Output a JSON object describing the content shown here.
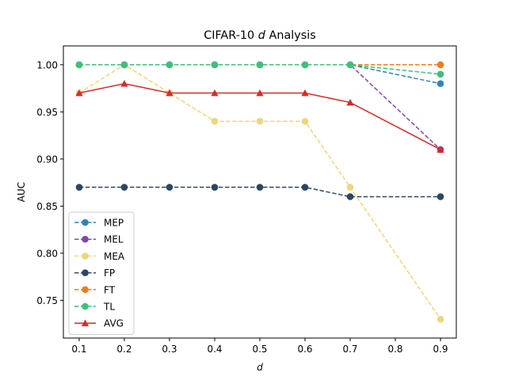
{
  "chart_data": {
    "type": "line",
    "title_prefix": "CIFAR-10 ",
    "title_italic": "d",
    "title_suffix": " Analysis",
    "xlabel": "d",
    "ylabel": "AUC",
    "xlim": [
      0.065,
      0.935
    ],
    "ylim": [
      0.71,
      1.02
    ],
    "xticks": [
      0.1,
      0.2,
      0.3,
      0.4,
      0.5,
      0.6,
      0.7,
      0.8,
      0.9
    ],
    "xtick_labels": [
      "0.1",
      "0.2",
      "0.3",
      "0.4",
      "0.5",
      "0.6",
      "0.7",
      "0.8",
      "0.9"
    ],
    "yticks": [
      0.75,
      0.8,
      0.85,
      0.9,
      0.95,
      1.0
    ],
    "ytick_labels": [
      "0.75",
      "0.80",
      "0.85",
      "0.90",
      "0.95",
      "1.00"
    ],
    "grid": false,
    "legend_position": "lower-left",
    "x": [
      0.1,
      0.2,
      0.3,
      0.4,
      0.5,
      0.6,
      0.7,
      0.9
    ],
    "series": [
      {
        "name": "MEP",
        "color": "#3282b8",
        "dashed": true,
        "marker": "circle",
        "values": [
          1.0,
          1.0,
          1.0,
          1.0,
          1.0,
          1.0,
          1.0,
          0.98
        ]
      },
      {
        "name": "MEL",
        "color": "#8147b0",
        "dashed": true,
        "marker": "circle",
        "values": [
          1.0,
          1.0,
          1.0,
          1.0,
          1.0,
          1.0,
          1.0,
          0.91
        ]
      },
      {
        "name": "MEA",
        "color": "#ecd67d",
        "dashed": true,
        "marker": "circle",
        "values": [
          0.97,
          1.0,
          0.97,
          0.94,
          0.94,
          0.94,
          0.87,
          0.73
        ]
      },
      {
        "name": "FP",
        "color": "#2d4660",
        "dashed": true,
        "marker": "circle",
        "values": [
          0.87,
          0.87,
          0.87,
          0.87,
          0.87,
          0.87,
          0.86,
          0.86
        ]
      },
      {
        "name": "FT",
        "color": "#f07d1a",
        "dashed": true,
        "marker": "circle",
        "values": [
          1.0,
          1.0,
          1.0,
          1.0,
          1.0,
          1.0,
          1.0,
          1.0
        ]
      },
      {
        "name": "TL",
        "color": "#3cc17a",
        "dashed": true,
        "marker": "circle",
        "values": [
          1.0,
          1.0,
          1.0,
          1.0,
          1.0,
          1.0,
          1.0,
          0.99
        ]
      },
      {
        "name": "AVG",
        "color": "#d42b2b",
        "dashed": false,
        "marker": "triangle",
        "values": [
          0.97,
          0.98,
          0.97,
          0.97,
          0.97,
          0.97,
          0.96,
          0.91
        ]
      }
    ]
  }
}
